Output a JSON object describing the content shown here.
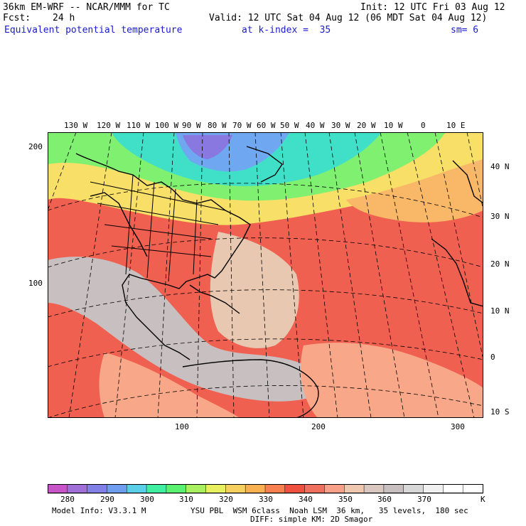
{
  "header": {
    "model": "36km EM-WRF -- NCAR/MMM for TC",
    "init": "Init: 12 UTC Fri 03 Aug 12",
    "fcst_label": "Fcst:",
    "fcst_value": "24 h",
    "valid": "Valid: 12 UTC Sat 04 Aug 12 (06 MDT Sat 04 Aug 12)",
    "field": "Equivalent potential temperature",
    "level": "at k-index =  35",
    "smooth": "sm= 6"
  },
  "map": {
    "lon_labels": [
      "130 W",
      "120 W",
      "110 W",
      "100 W",
      "90 W",
      "80 W",
      "70 W",
      "60 W",
      "50 W",
      "40 W",
      "30 W",
      "20 W",
      "10 W",
      "0",
      "10 E"
    ],
    "lat_labels": [
      "40 N",
      "30 N",
      "20 N",
      "10 N",
      "0",
      "10 S"
    ],
    "grid_x_labels": [
      "100",
      "200",
      "300"
    ],
    "grid_y_labels": [
      "200",
      "100"
    ]
  },
  "colorbar": {
    "unit": "K",
    "tick_labels": [
      "280",
      "290",
      "300",
      "310",
      "320",
      "330",
      "340",
      "350",
      "360",
      "370"
    ],
    "colors": [
      "#c855c8",
      "#a070d8",
      "#8080e6",
      "#6f9ef0",
      "#5ad0e8",
      "#40f0a0",
      "#5af070",
      "#a8f060",
      "#e8f060",
      "#f8d060",
      "#f8b050",
      "#f88050",
      "#f05040",
      "#f07060",
      "#f8a088",
      "#f0c8b0",
      "#d8c8c0",
      "#c8c0c0",
      "#d8d8d8",
      "#f0f0f0",
      "#ffffff",
      "#ffffff"
    ]
  },
  "footer": {
    "model_info": "Model Info: V3.3.1 M",
    "physics": "YSU PBL  WSM 6class  Noah LSM  36 km,   35 levels,  180 sec",
    "diffusion": "DIFF: simple KM: 2D Smagor"
  }
}
